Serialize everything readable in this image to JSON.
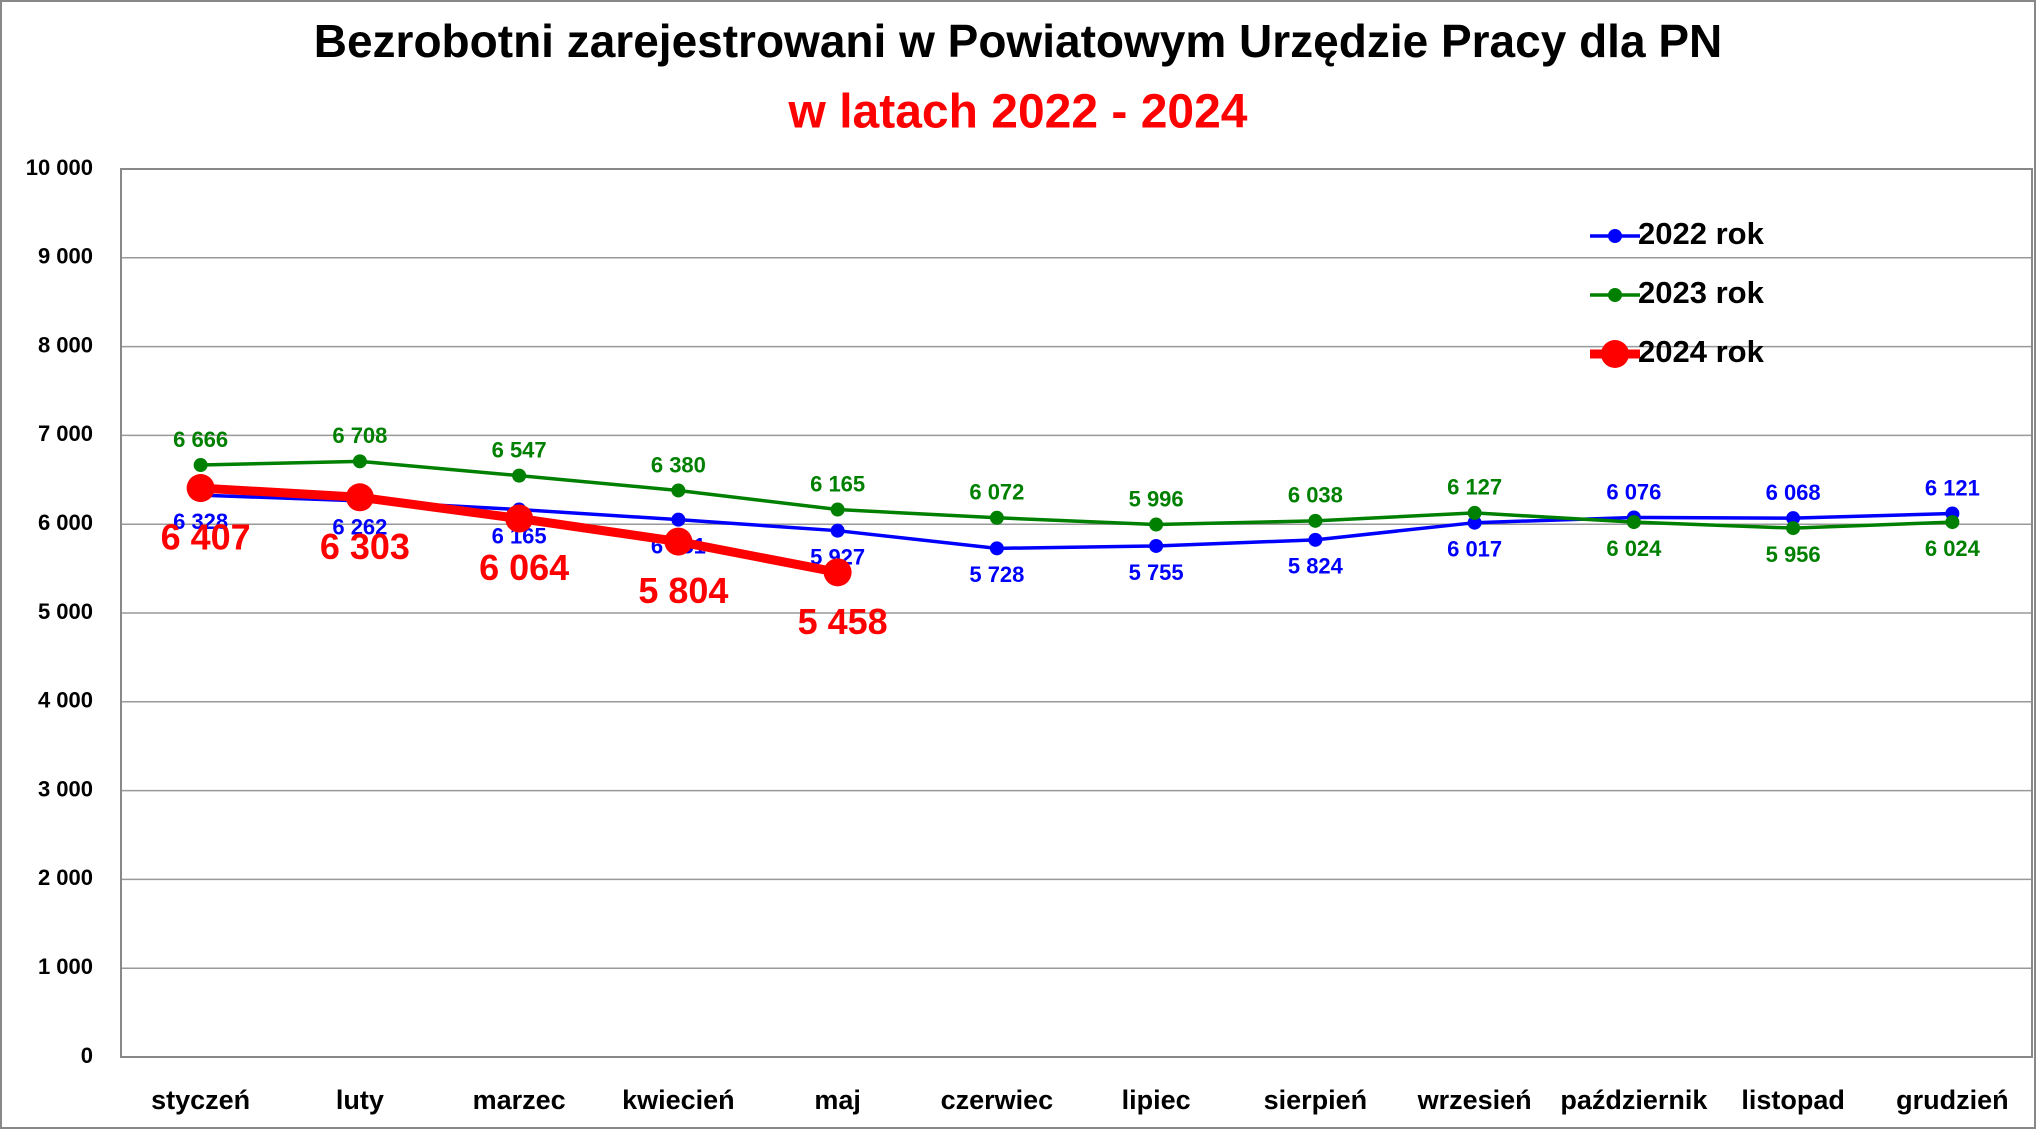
{
  "chart_data": {
    "type": "line",
    "title": "Bezrobotni zarejestrowani w Powiatowym Urzędzie Pracy dla PN",
    "subtitle": "w latach 2022 - 2024",
    "categories": [
      "styczeń",
      "luty",
      "marzec",
      "kwiecień",
      "maj",
      "czerwiec",
      "lipiec",
      "sierpień",
      "wrzesień",
      "październik",
      "listopad",
      "grudzień"
    ],
    "series": [
      {
        "name": "2022 rok",
        "color": "#0000ff",
        "values": [
          6328,
          6262,
          6165,
          6051,
          5927,
          5728,
          5755,
          5824,
          6017,
          6076,
          6068,
          6121
        ],
        "value_labels": [
          "6 328",
          "6 262",
          "6 165",
          "6 051",
          "5 927",
          "5 728",
          "5 755",
          "5 824",
          "6 017",
          "6 076",
          "6 068",
          "6 121"
        ]
      },
      {
        "name": "2023 rok",
        "color": "#008000",
        "values": [
          6666,
          6708,
          6547,
          6380,
          6165,
          6072,
          5996,
          6038,
          6127,
          6024,
          5956,
          6024
        ],
        "value_labels": [
          "6 666",
          "6 708",
          "6 547",
          "6 380",
          "6 165",
          "6 072",
          "5 996",
          "6 038",
          "6 127",
          "6 024",
          "5 956",
          "6 024"
        ]
      },
      {
        "name": "2024 rok",
        "color": "#ff0000",
        "values": [
          6407,
          6303,
          6064,
          5804,
          5458,
          null,
          null,
          null,
          null,
          null,
          null,
          null
        ],
        "value_labels": [
          "6 407",
          "6 303",
          "6 064",
          "5 804",
          "5 458",
          null,
          null,
          null,
          null,
          null,
          null,
          null
        ]
      }
    ],
    "ylim": [
      0,
      10000
    ],
    "yticks": [
      0,
      {
        "value": 1000,
        "label": "1 000"
      },
      {
        "value": 2000,
        "label": "2 000"
      },
      {
        "value": 3000,
        "label": "3 000"
      },
      {
        "value": 4000,
        "label": "4 000"
      },
      {
        "value": 5000,
        "label": "5 000"
      },
      {
        "value": 6000,
        "label": "6 000"
      },
      {
        "value": 7000,
        "label": "7 000"
      },
      {
        "value": 8000,
        "label": "8 000"
      },
      {
        "value": 9000,
        "label": "9 000"
      },
      {
        "value": 10000,
        "label": "10 000"
      }
    ],
    "grid": true,
    "legend": "top-right"
  }
}
